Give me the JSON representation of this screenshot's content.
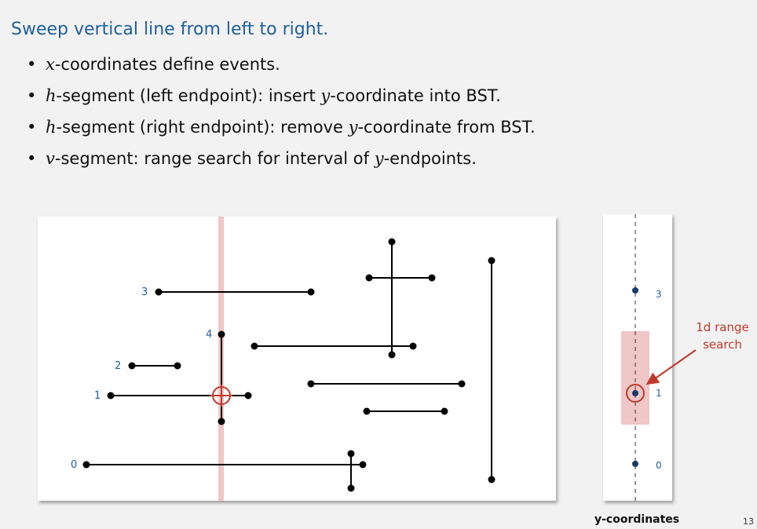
{
  "title": "Sweep vertical line from left to right.",
  "bullets": [
    {
      "var": "x",
      "text": "-coordinates define events."
    },
    {
      "var": "h",
      "text": "-segment (left endpoint):  insert ",
      "var2": "y",
      "text2": "-coordinate into BST."
    },
    {
      "var": "h",
      "text": "-segment (right endpoint):  remove ",
      "var2": "y",
      "text2": "-coordinate from BST."
    },
    {
      "var": "v",
      "text": "-segment:  range search for interval of ",
      "var2": "y",
      "text2": "-endpoints."
    }
  ],
  "sweep_labels": {
    "h0": "0",
    "h1": "1",
    "h2": "2",
    "h3": "3",
    "v4": "4"
  },
  "bst_labels": {
    "k3": "3",
    "k1": "1",
    "k0": "0"
  },
  "annotation": [
    "1d range",
    "search"
  ],
  "caption": "y-coordinates",
  "page_number": "13",
  "colors": {
    "title": "#1f5f9e",
    "sweep_line": "#f0c6c6",
    "highlight": "#c0392b",
    "bst_point": "#1a3a6b"
  }
}
